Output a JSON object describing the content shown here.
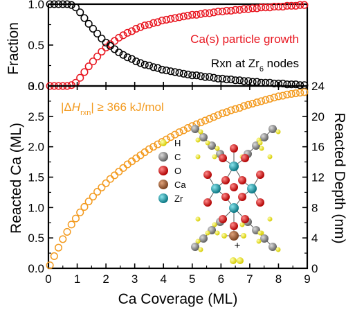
{
  "chart_data": [
    {
      "type": "scatter",
      "xlim": [
        0,
        9
      ],
      "ylim": [
        0.0,
        1.0
      ],
      "ylabel": "Fraction",
      "yticks": [
        "0.0",
        "0.5",
        "1.0"
      ],
      "grid": false,
      "legend": "annotations",
      "series": [
        {
          "name": "Ca(s) particle growth",
          "color": "#e8141e",
          "x": [
            0.05,
            0.2,
            0.35,
            0.5,
            0.65,
            0.8,
            0.95,
            1.1,
            1.25,
            1.4,
            1.55,
            1.7,
            1.85,
            2.0,
            2.15,
            2.3,
            2.45,
            2.6,
            2.75,
            2.9,
            3.05,
            3.2,
            3.35,
            3.5,
            3.65,
            3.8,
            3.95,
            4.1,
            4.25,
            4.4,
            4.55,
            4.7,
            4.85,
            5.0,
            5.15,
            5.3,
            5.45,
            5.6,
            5.75,
            5.9,
            6.05,
            6.2,
            6.35,
            6.5,
            6.65,
            6.8,
            6.95,
            7.1,
            7.25,
            7.4,
            7.55,
            7.7,
            7.85,
            8.0,
            8.15,
            8.3,
            8.45,
            8.6,
            8.75,
            8.9
          ],
          "y": [
            0.0,
            0.0,
            0.0,
            0.0,
            0.0,
            0.01,
            0.04,
            0.1,
            0.17,
            0.24,
            0.3,
            0.36,
            0.42,
            0.47,
            0.51,
            0.55,
            0.59,
            0.62,
            0.65,
            0.67,
            0.7,
            0.72,
            0.74,
            0.75,
            0.77,
            0.78,
            0.8,
            0.81,
            0.82,
            0.83,
            0.84,
            0.85,
            0.86,
            0.87,
            0.87,
            0.88,
            0.89,
            0.89,
            0.9,
            0.91,
            0.91,
            0.92,
            0.92,
            0.93,
            0.93,
            0.94,
            0.94,
            0.95,
            0.95,
            0.96,
            0.96,
            0.96,
            0.97,
            0.97,
            0.97,
            0.98,
            0.98,
            0.98,
            0.99,
            0.99
          ]
        },
        {
          "name": "Rxn at Zr₆ nodes",
          "color": "#000000",
          "x": [
            0.05,
            0.2,
            0.35,
            0.5,
            0.65,
            0.8,
            0.95,
            1.1,
            1.25,
            1.4,
            1.55,
            1.7,
            1.85,
            2.0,
            2.15,
            2.3,
            2.45,
            2.6,
            2.75,
            2.9,
            3.05,
            3.2,
            3.35,
            3.5,
            3.65,
            3.8,
            3.95,
            4.1,
            4.25,
            4.4,
            4.55,
            4.7,
            4.85,
            5.0,
            5.15,
            5.3,
            5.45,
            5.6,
            5.75,
            5.9,
            6.05,
            6.2,
            6.35,
            6.5,
            6.65,
            6.8,
            6.95,
            7.1,
            7.25,
            7.4,
            7.55,
            7.7,
            7.85,
            8.0,
            8.15,
            8.3,
            8.45,
            8.6,
            8.75,
            8.9
          ],
          "y": [
            1.0,
            1.0,
            1.0,
            1.0,
            1.0,
            0.99,
            0.96,
            0.9,
            0.83,
            0.76,
            0.7,
            0.64,
            0.58,
            0.53,
            0.49,
            0.45,
            0.41,
            0.38,
            0.35,
            0.33,
            0.3,
            0.28,
            0.26,
            0.25,
            0.23,
            0.22,
            0.2,
            0.19,
            0.18,
            0.17,
            0.16,
            0.15,
            0.14,
            0.13,
            0.13,
            0.12,
            0.11,
            0.11,
            0.1,
            0.09,
            0.09,
            0.08,
            0.08,
            0.07,
            0.07,
            0.06,
            0.06,
            0.05,
            0.05,
            0.04,
            0.04,
            0.04,
            0.03,
            0.03,
            0.03,
            0.02,
            0.02,
            0.02,
            0.01,
            0.01
          ]
        }
      ]
    },
    {
      "type": "scatter",
      "xlim": [
        0,
        9
      ],
      "ylim": [
        0.0,
        3.0
      ],
      "xlabel": "Ca Coverage (ML)",
      "ylabel": "Reacted Ca (ML)",
      "y2label": "Reacted Depth (nm)",
      "y2lim": [
        0,
        24
      ],
      "xticks": [
        "0",
        "1",
        "2",
        "3",
        "4",
        "5",
        "6",
        "7",
        "8",
        "9"
      ],
      "yticks": [
        "0.0",
        "0.5",
        "1.0",
        "1.5",
        "2.0",
        "2.5",
        "3.0"
      ],
      "y2ticks": [
        "0",
        "4",
        "8",
        "12",
        "16",
        "20",
        "24"
      ],
      "grid": false,
      "annotation_parts": [
        "|Δ",
        "H",
        "rxn",
        "| ≥ 366 kJ/mol"
      ],
      "series": [
        {
          "name": "",
          "color": "#f39a1e",
          "x": [
            0.05,
            0.2,
            0.35,
            0.5,
            0.65,
            0.8,
            0.95,
            1.1,
            1.25,
            1.4,
            1.55,
            1.7,
            1.85,
            2.0,
            2.15,
            2.3,
            2.45,
            2.6,
            2.75,
            2.9,
            3.05,
            3.2,
            3.35,
            3.5,
            3.65,
            3.8,
            3.95,
            4.1,
            4.25,
            4.4,
            4.55,
            4.7,
            4.85,
            5.0,
            5.15,
            5.3,
            5.45,
            5.6,
            5.75,
            5.9,
            6.05,
            6.2,
            6.35,
            6.5,
            6.65,
            6.8,
            6.95,
            7.1,
            7.25,
            7.4,
            7.55,
            7.7,
            7.85,
            8.0,
            8.15,
            8.3,
            8.45,
            8.6,
            8.75,
            8.9
          ],
          "y": [
            0.05,
            0.2,
            0.34,
            0.48,
            0.6,
            0.72,
            0.82,
            0.92,
            1.01,
            1.1,
            1.18,
            1.26,
            1.33,
            1.4,
            1.47,
            1.53,
            1.59,
            1.65,
            1.71,
            1.76,
            1.81,
            1.86,
            1.91,
            1.96,
            2.0,
            2.04,
            2.08,
            2.12,
            2.16,
            2.2,
            2.24,
            2.27,
            2.31,
            2.34,
            2.37,
            2.4,
            2.43,
            2.46,
            2.49,
            2.52,
            2.55,
            2.57,
            2.6,
            2.62,
            2.64,
            2.67,
            2.69,
            2.71,
            2.73,
            2.75,
            2.77,
            2.79,
            2.81,
            2.83,
            2.84,
            2.86,
            2.87,
            2.88,
            2.89,
            2.9
          ]
        }
      ]
    }
  ],
  "structure_legend": [
    {
      "label": "H",
      "color": "#f2ea18",
      "icon": "hydrogen-atom-icon"
    },
    {
      "label": "C",
      "color": "#8c8c8c",
      "icon": "carbon-atom-icon"
    },
    {
      "label": "O",
      "color": "#e8141e",
      "icon": "oxygen-atom-icon"
    },
    {
      "label": "Ca",
      "color": "#a0633a",
      "icon": "calcium-atom-icon"
    },
    {
      "label": "Zr",
      "color": "#1aa6b3",
      "icon": "zirconium-atom-icon"
    }
  ],
  "structure_plus": "+"
}
